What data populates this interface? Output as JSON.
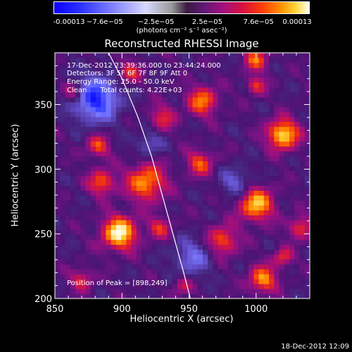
{
  "chart_data": {
    "type": "heatmap",
    "title": "Reconstructed RHESSI Image",
    "xlabel": "Heliocentric X (arcsec)",
    "ylabel": "Heliocentric Y (arcsec)",
    "xlim": [
      850,
      1040
    ],
    "ylim": [
      200,
      390
    ],
    "xticks": [
      850,
      900,
      950,
      1000
    ],
    "yticks": [
      200,
      250,
      300,
      350
    ],
    "colorbar": {
      "ticks": [
        "-0.00013",
        "−7.6e−05",
        "−2.5e−05",
        "2.5e−05",
        "7.6e−05",
        "0.00013"
      ],
      "unit_text": "(photons cm⁻² s⁻¹ asec⁻²)",
      "range": [
        -0.00013,
        0.00013
      ]
    },
    "annotations": {
      "time_range": "17-Dec-2012 23:39:36.000 to 23:44:24.000",
      "detectors": "Detectors: 3F 5F 6F 7F 8F 9F Att 0",
      "energy_range": "Energy Range: 25.0 - 50.0 keV",
      "clean_counts": "Clean      Total counts: 4.22E+03",
      "peak": "Position of Peak = [898,249]"
    },
    "peak": [
      898,
      249
    ],
    "hotspots": [
      {
        "x": 898,
        "y": 251,
        "r": 9,
        "v": 1.0
      },
      {
        "x": 1020,
        "y": 327,
        "r": 8,
        "v": 0.95
      },
      {
        "x": 1000,
        "y": 273,
        "r": 9,
        "v": 0.85
      },
      {
        "x": 918,
        "y": 290,
        "r": 10,
        "v": 0.75
      },
      {
        "x": 885,
        "y": 290,
        "r": 7,
        "v": 0.6
      },
      {
        "x": 1005,
        "y": 215,
        "r": 7,
        "v": 0.75
      },
      {
        "x": 960,
        "y": 353,
        "r": 8,
        "v": 0.65
      },
      {
        "x": 975,
        "y": 245,
        "r": 8,
        "v": 0.6
      },
      {
        "x": 1033,
        "y": 255,
        "r": 6,
        "v": 0.55
      },
      {
        "x": 958,
        "y": 305,
        "r": 7,
        "v": 0.55
      },
      {
        "x": 882,
        "y": 318,
        "r": 6,
        "v": 0.55
      },
      {
        "x": 865,
        "y": 360,
        "r": 6,
        "v": 0.5
      },
      {
        "x": 930,
        "y": 340,
        "r": 7,
        "v": 0.45
      },
      {
        "x": 905,
        "y": 375,
        "r": 6,
        "v": 0.5
      },
      {
        "x": 1000,
        "y": 385,
        "r": 6,
        "v": 0.6
      },
      {
        "x": 870,
        "y": 215,
        "r": 6,
        "v": 0.45
      },
      {
        "x": 1020,
        "y": 232,
        "r": 5,
        "v": 0.5
      },
      {
        "x": 1000,
        "y": 365,
        "r": 5,
        "v": 0.5
      },
      {
        "x": 928,
        "y": 255,
        "r": 6,
        "v": 0.45
      },
      {
        "x": 945,
        "y": 210,
        "r": 5,
        "v": 0.4
      }
    ],
    "coldspots": [
      {
        "x": 880,
        "y": 355,
        "r": 12,
        "v": -0.9
      },
      {
        "x": 952,
        "y": 232,
        "r": 10,
        "v": -0.45
      },
      {
        "x": 985,
        "y": 290,
        "r": 8,
        "v": -0.4
      },
      {
        "x": 920,
        "y": 320,
        "r": 7,
        "v": -0.35
      }
    ],
    "limb_curve": [
      [
        890,
        390
      ],
      [
        900,
        370
      ],
      [
        912,
        340
      ],
      [
        922,
        310
      ],
      [
        930,
        280
      ],
      [
        938,
        250
      ],
      [
        946,
        220
      ],
      [
        951,
        200
      ]
    ]
  },
  "footer": {
    "date": "18-Dec-2012 12:09"
  }
}
